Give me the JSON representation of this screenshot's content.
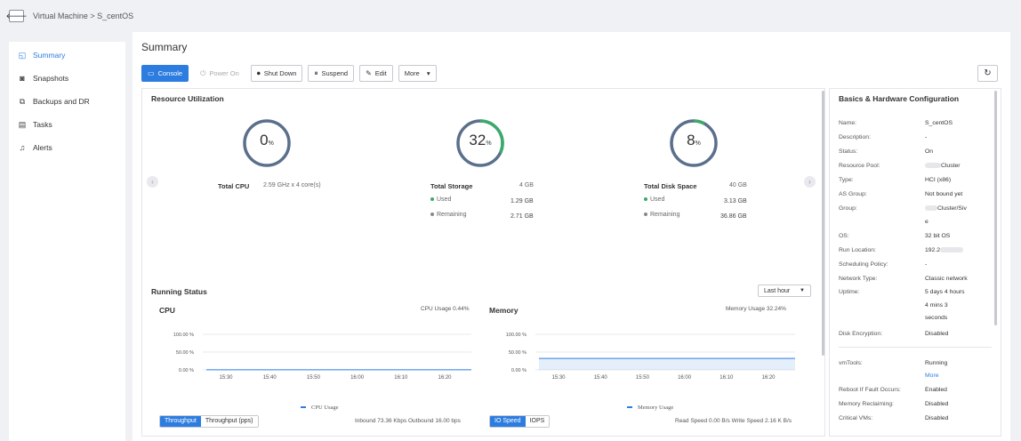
{
  "breadcrumb": "Virtual Machine > S_centOS",
  "sidebar": {
    "items": [
      {
        "label": "Summary",
        "icon": "summary-icon",
        "glyph": "◱"
      },
      {
        "label": "Snapshots",
        "icon": "snapshot-icon",
        "glyph": "◙"
      },
      {
        "label": "Backups and DR",
        "icon": "backup-icon",
        "glyph": "⧉"
      },
      {
        "label": "Tasks",
        "icon": "tasks-icon",
        "glyph": "▤"
      },
      {
        "label": "Alerts",
        "icon": "bell-icon",
        "glyph": "♫"
      }
    ]
  },
  "page_title": "Summary",
  "toolbar": {
    "console": "Console",
    "power_on": "Power On",
    "shut_down": "Shut Down",
    "suspend": "Suspend",
    "edit": "Edit",
    "more": "More",
    "more_caret": "▾"
  },
  "resource": {
    "title": "Resource Utilization",
    "cpu": {
      "percent": "0",
      "unit": "%",
      "label": "Total CPU",
      "detail": "2.59 GHz x 4 core(s)"
    },
    "storage": {
      "percent": "32",
      "unit": "%",
      "label": "Total Storage",
      "total": "4 GB",
      "used_label": "Used",
      "used": "1.29 GB",
      "remaining_label": "Remaining",
      "remaining": "2.71 GB"
    },
    "disk": {
      "percent": "8",
      "unit": "%",
      "label": "Total Disk Space",
      "total": "40 GB",
      "used_label": "Used",
      "used": "3.13 GB",
      "remaining_label": "Remaining",
      "remaining": "36.86 GB"
    }
  },
  "running": {
    "title": "Running Status",
    "range": "Last hour",
    "cpu": {
      "title": "CPU",
      "usage": "CPU Usage 0.44%",
      "y_ticks": [
        "100.00 %",
        "50.00 %",
        "0.00 %"
      ],
      "x_ticks": [
        "15:30",
        "15:40",
        "15:50",
        "16:00",
        "16:10",
        "16:20"
      ],
      "legend": "CPU Usage"
    },
    "memory": {
      "title": "Memory",
      "usage": "Memory Usage 32.24%",
      "y_ticks": [
        "100.00 %",
        "50.00 %",
        "0.00 %"
      ],
      "x_ticks": [
        "15:30",
        "15:40",
        "15:50",
        "16:00",
        "16:10",
        "16:20"
      ],
      "legend": "Memory Usage"
    },
    "net_tabs": [
      "Throughput",
      "Throughput (pps)"
    ],
    "net_stats": "Inbound 73.36 Kbps  Outbound 16.00 bps",
    "io_tabs": [
      "IO Speed",
      "IOPS"
    ],
    "io_stats": "Read Speed 0.00 B/s  Write Speed 2.16 K B/s"
  },
  "chart_data": [
    {
      "type": "area",
      "title": "CPU",
      "x": [
        "15:30",
        "15:40",
        "15:50",
        "16:00",
        "16:10",
        "16:20"
      ],
      "series": [
        {
          "name": "CPU Usage",
          "values": [
            0.44,
            0.44,
            0.44,
            0.44,
            0.44,
            0.44
          ]
        }
      ],
      "ylim": [
        0,
        100
      ],
      "grid": true,
      "legend": "bottom"
    },
    {
      "type": "area",
      "title": "Memory",
      "x": [
        "15:30",
        "15:40",
        "15:50",
        "16:00",
        "16:10",
        "16:20"
      ],
      "series": [
        {
          "name": "Memory Usage",
          "values": [
            32.24,
            32.24,
            32.24,
            32.24,
            32.24,
            32.24
          ]
        }
      ],
      "ylim": [
        0,
        100
      ],
      "grid": true,
      "legend": "bottom"
    }
  ],
  "config": {
    "title": "Basics & Hardware Configuration",
    "name_label": "Name:",
    "name": "S_centOS",
    "description_label": "Description:",
    "description": "-",
    "status_label": "Status:",
    "status": "On",
    "pool_label": "Resource Pool:",
    "pool": "Cluster",
    "type_label": "Type:",
    "type": "HCI (x86)",
    "as_group_label": "AS Group:",
    "as_group": "Not bound yet",
    "group_label": "Group:",
    "group": "Cluster/Siv",
    "group_cont": "e",
    "os_label": "OS:",
    "os": "32 bit OS",
    "run_location_label": "Run Location:",
    "run_location": "192.2",
    "scheduling_label": "Scheduling Policy:",
    "scheduling": "-",
    "network_label": "Network Type:",
    "network": "Classic network",
    "uptime_label": "Uptime:",
    "uptime_1": "5 days 4 hours",
    "uptime_2": "4 mins 3",
    "uptime_3": "seconds",
    "encryption_label": "Disk Encryption:",
    "encryption": "Disabled",
    "vmtools_label": "vmTools:",
    "vmtools": "Running",
    "vmtools_more": "More",
    "reboot_label": "Reboot If Fault Occurs:",
    "reboot": "Enabled",
    "memrec_label": "Memory Reclaiming:",
    "memrec": "Disabled",
    "critical_label": "Critical VMs:",
    "critical": "Disabled"
  },
  "colors": {
    "accent": "#2d7de0",
    "ring_track": "#5b6f8c",
    "ring_fill": "#3aaa6a"
  }
}
